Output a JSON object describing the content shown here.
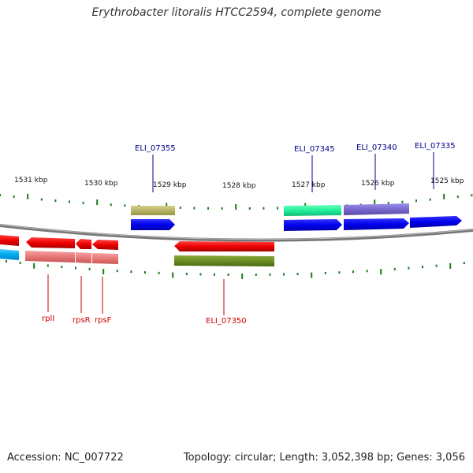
{
  "title": "Erythrobacter litoralis HTCC2594, complete genome",
  "footer": {
    "accession": "Accession: NC_007722",
    "stats": "Topology: circular; Length: 3,052,398 bp; Genes: 3,056"
  },
  "scale_labels": [
    "1531 kbp",
    "1530 kbp",
    "1529 kbp",
    "1528 kbp",
    "1527 kbp",
    "1526 kbp",
    "1525 kbp"
  ],
  "top_gene_labels": [
    "ELI_07355",
    "ELI_07345",
    "ELI_07340",
    "ELI_07335"
  ],
  "bottom_gene_labels": [
    "rplI",
    "rpsR",
    "rpsF",
    "ELI_07350"
  ],
  "colors": {
    "backbone": "#888888",
    "tick": "#1a7a1a",
    "forward_cds": "#0000ee",
    "reverse_cds": "#ee0000",
    "top_label": "#000088",
    "bottom_label": "#cc0000"
  }
}
